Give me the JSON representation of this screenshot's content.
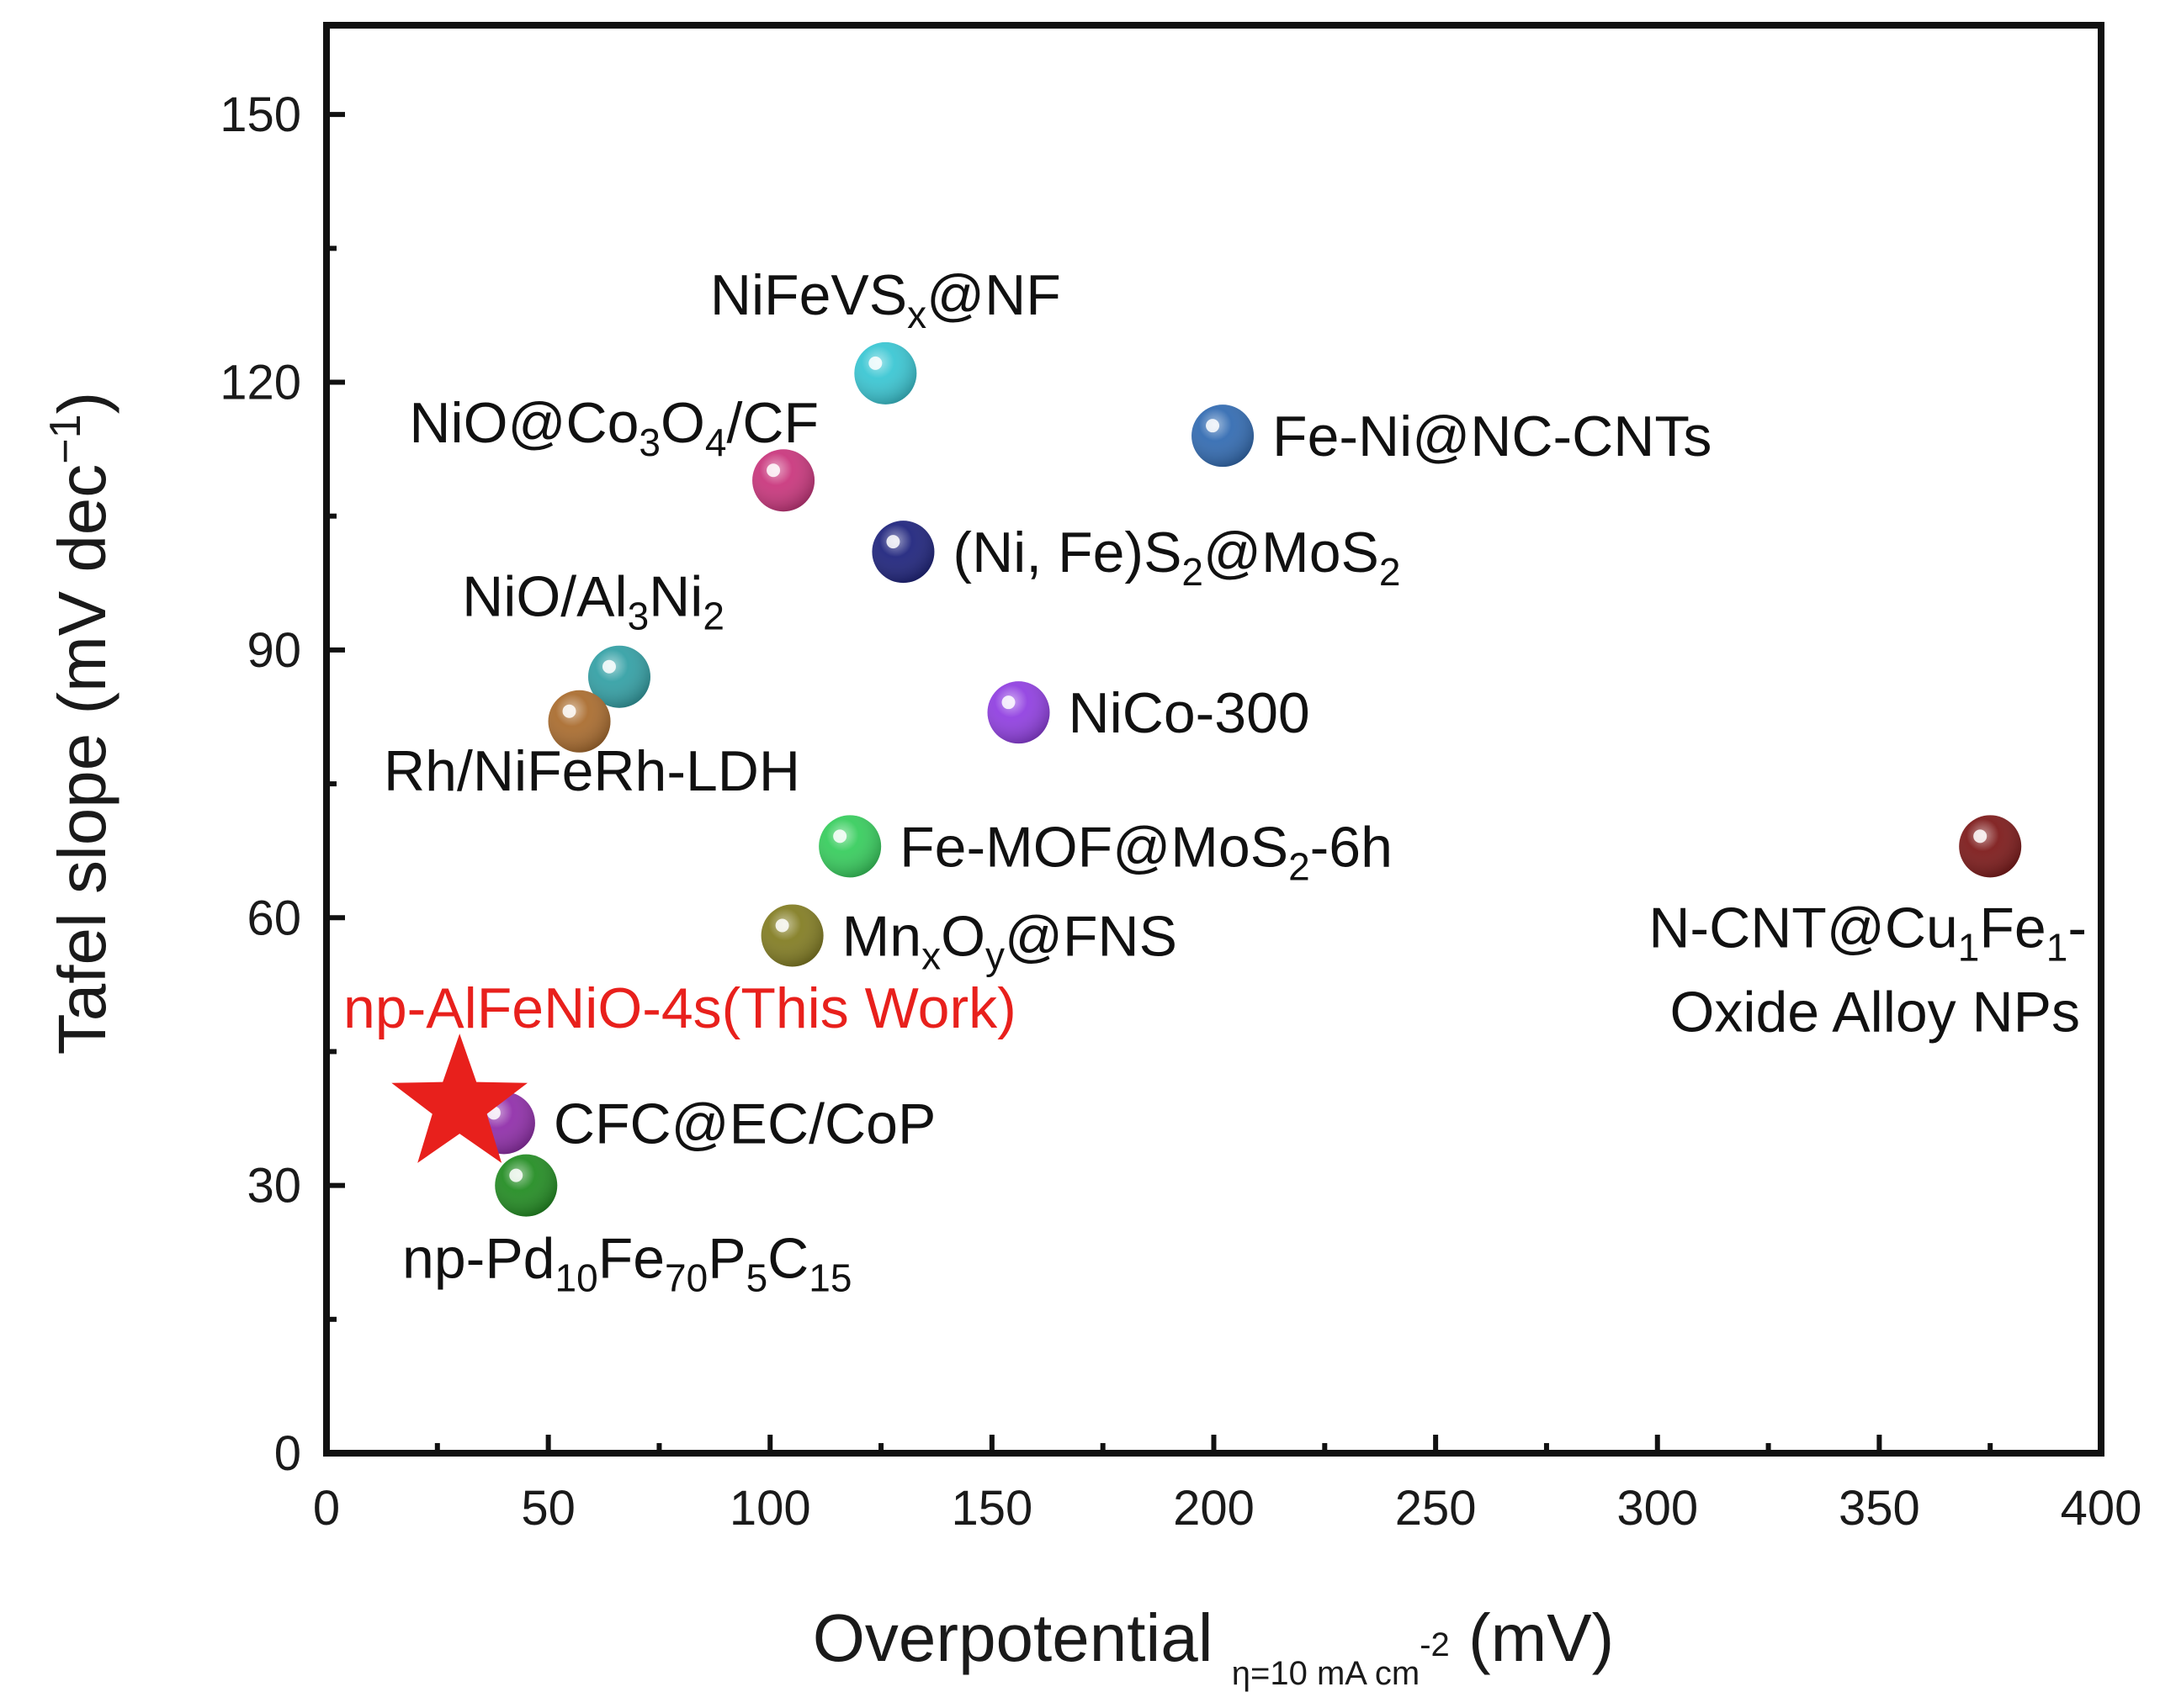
{
  "chart_data": {
    "type": "scatter",
    "title": "",
    "xlabel": {
      "main": "Overpotential",
      "sub": "η=10 mA cm",
      "sub_sup": "-2",
      "unit": "(mV)"
    },
    "ylabel": {
      "main": "Tafel slope (mV dec",
      "sup": "−1",
      "close": ")"
    },
    "xlim": [
      0,
      400
    ],
    "ylim": [
      0,
      160
    ],
    "xticks": [
      0,
      50,
      100,
      150,
      200,
      250,
      300,
      350,
      400
    ],
    "yticks": [
      0,
      30,
      60,
      90,
      120,
      150
    ],
    "grid": false,
    "points": [
      {
        "name": "NiFeVSx@NF",
        "x": 126,
        "y": 121,
        "color": "#36c5d2",
        "label": [
          {
            "t": "NiFeVS"
          },
          {
            "t": "x",
            "sub": true
          },
          {
            "t": "@NF"
          }
        ],
        "label_pos": "above"
      },
      {
        "name": "Fe-Ni@NC-CNTs",
        "x": 202,
        "y": 114,
        "color": "#2e68b0",
        "label": [
          {
            "t": "Fe-Ni@NC-CNTs"
          }
        ],
        "label_pos": "right"
      },
      {
        "name": "NiO@Co3O4/CF",
        "x": 103,
        "y": 109,
        "color": "#c8327a",
        "label": [
          {
            "t": "NiO@Co"
          },
          {
            "t": "3",
            "sub": true
          },
          {
            "t": "O"
          },
          {
            "t": "4",
            "sub": true
          },
          {
            "t": "/CF"
          }
        ],
        "label_pos": "above-left"
      },
      {
        "name": "(Ni, Fe)S2@MoS2",
        "x": 130,
        "y": 101,
        "color": "#1a1f7a",
        "label": [
          {
            "t": "(Ni, Fe)S"
          },
          {
            "t": "2",
            "sub": true
          },
          {
            "t": "@MoS"
          },
          {
            "t": "2",
            "sub": true
          }
        ],
        "label_pos": "right"
      },
      {
        "name": "NiO/Al3Ni2",
        "x": 66,
        "y": 87,
        "color": "#2f9ea3",
        "label": [
          {
            "t": "NiO/Al"
          },
          {
            "t": "3",
            "sub": true
          },
          {
            "t": "Ni"
          },
          {
            "t": "2",
            "sub": true
          }
        ],
        "label_pos": "above-left"
      },
      {
        "name": "NiCo-300",
        "x": 156,
        "y": 83,
        "color": "#8e3be0",
        "label": [
          {
            "t": "NiCo-300"
          }
        ],
        "label_pos": "right"
      },
      {
        "name": "Rh/NiFeRh-LDH",
        "x": 57,
        "y": 82,
        "color": "#a8692a",
        "label": [
          {
            "t": "Rh/NiFeRh-LDH"
          }
        ],
        "label_pos": "below"
      },
      {
        "name": "Fe-MOF@MoS2-6h",
        "x": 118,
        "y": 68,
        "color": "#33cc5a",
        "label": [
          {
            "t": "Fe-MOF@MoS"
          },
          {
            "t": "2",
            "sub": true
          },
          {
            "t": "-6h"
          }
        ],
        "label_pos": "right"
      },
      {
        "name": "N-CNT@Cu1Fe1-Oxide Alloy NPs",
        "x": 375,
        "y": 68,
        "color": "#7a1515",
        "label": [
          {
            "t": "N-CNT@Cu"
          },
          {
            "t": "1",
            "sub": true
          },
          {
            "t": "Fe"
          },
          {
            "t": "1",
            "sub": true
          },
          {
            "t": "-"
          }
        ],
        "label2": "Oxide Alloy NPs",
        "label_pos": "below-left"
      },
      {
        "name": "MnxOy@FNS",
        "x": 105,
        "y": 58,
        "color": "#807a1e",
        "label": [
          {
            "t": "Mn"
          },
          {
            "t": "x",
            "sub": true
          },
          {
            "t": "O"
          },
          {
            "t": "y",
            "sub": true
          },
          {
            "t": "@FNS"
          }
        ],
        "label_pos": "right"
      },
      {
        "name": "CFC@EC/CoP",
        "x": 40,
        "y": 37,
        "color": "#8e2aa8",
        "label": [
          {
            "t": "CFC@EC/CoP"
          }
        ],
        "label_pos": "right"
      },
      {
        "name": "np-Pd10Fe70P5C15",
        "x": 45,
        "y": 30,
        "color": "#1e8a1e",
        "label": [
          {
            "t": "np-Pd"
          },
          {
            "t": "10",
            "sub": true
          },
          {
            "t": "Fe"
          },
          {
            "t": "70",
            "sub": true
          },
          {
            "t": "P"
          },
          {
            "t": "5",
            "sub": true
          },
          {
            "t": "C"
          },
          {
            "t": "15",
            "sub": true
          }
        ],
        "label_pos": "below"
      }
    ],
    "highlight": {
      "name": "np-AlFeNiO-4s(This Work)",
      "x": 30,
      "y": 39,
      "marker": "star",
      "color": "#e8201c",
      "label": "np-AlFeNiO-4s(This Work)"
    }
  }
}
